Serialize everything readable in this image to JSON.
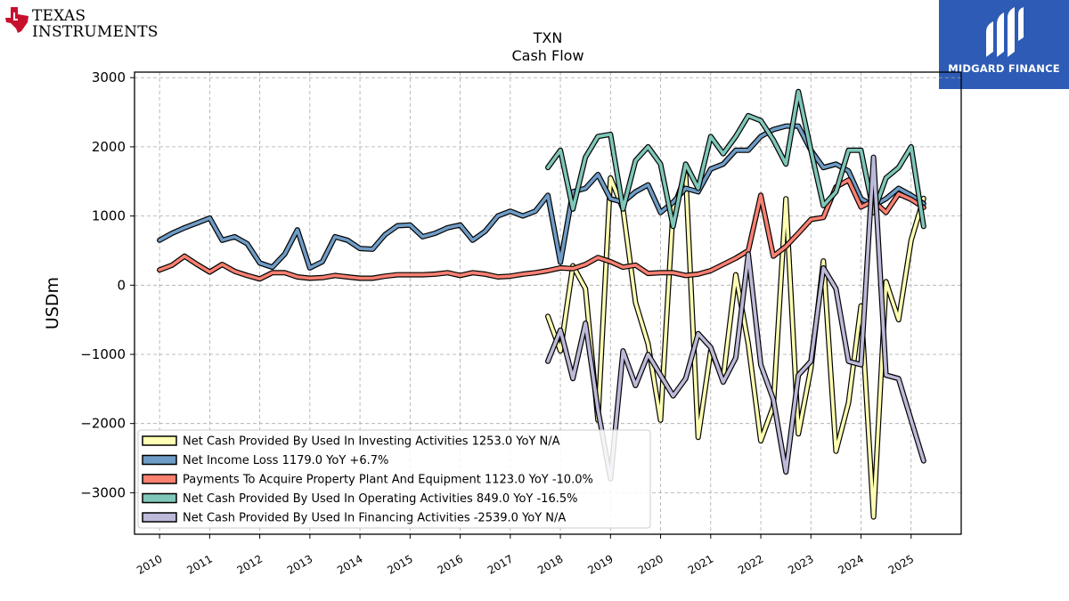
{
  "logos": {
    "left_brand": {
      "line1": "TEXAS",
      "line2": "INSTRUMENTS",
      "icon": "texas-state-icon",
      "color": "#c8102e"
    },
    "right_brand": {
      "label": "MIDGARD FINANCE",
      "icon": "midgard-emblem-icon",
      "bg_color": "#2d5bb5"
    }
  },
  "chart_data": {
    "type": "line",
    "title": "TXN",
    "subtitle": "Cash Flow",
    "ylabel": "USDm",
    "xlabel": "",
    "xlim": [
      2009.5,
      2026.0
    ],
    "ylim": [
      -3600,
      3080
    ],
    "xticks": [
      2010,
      2011,
      2012,
      2013,
      2014,
      2015,
      2016,
      2017,
      2018,
      2019,
      2020,
      2021,
      2022,
      2023,
      2024,
      2025
    ],
    "xtick_labels": [
      "2010",
      "2011",
      "2012",
      "2013",
      "2014",
      "2015",
      "2016",
      "2017",
      "2018",
      "2019",
      "2020",
      "2021",
      "2022",
      "2023",
      "2024",
      "2025"
    ],
    "yticks": [
      -3000,
      -2000,
      -1000,
      0,
      1000,
      2000,
      3000
    ],
    "ytick_labels": [
      "−3000",
      "−2000",
      "−1000",
      "0",
      "1000",
      "2000",
      "3000"
    ],
    "grid": true,
    "legend_position": "lower-left",
    "series": [
      {
        "name": "Net Cash Provided By Used In Investing Activities  1253.0 YoY N/A",
        "color": "#ffffb3",
        "x": [
          2017.75,
          2018.0,
          2018.25,
          2018.5,
          2018.75,
          2019.0,
          2019.25,
          2019.5,
          2019.75,
          2020.0,
          2020.25,
          2020.5,
          2020.75,
          2021.0,
          2021.25,
          2021.5,
          2021.75,
          2022.0,
          2022.25,
          2022.5,
          2022.75,
          2023.0,
          2023.25,
          2023.5,
          2023.75,
          2024.0,
          2024.25,
          2024.5,
          2024.75,
          2025.0,
          2025.25
        ],
        "y": [
          -450,
          -950,
          280,
          -50,
          -1950,
          1550,
          1100,
          -250,
          -850,
          -1950,
          1100,
          1600,
          -2200,
          -950,
          -1350,
          150,
          -850,
          -2250,
          -1750,
          1250,
          -2150,
          -1200,
          350,
          -2400,
          -1700,
          -300,
          -3350,
          50,
          -500,
          650,
          1253
        ]
      },
      {
        "name": "Net Income Loss  1179.0 YoY +6.7%",
        "color": "#6f9cc6",
        "x": [
          2010.0,
          2010.25,
          2010.5,
          2010.75,
          2011.0,
          2011.25,
          2011.5,
          2011.75,
          2012.0,
          2012.25,
          2012.5,
          2012.75,
          2013.0,
          2013.25,
          2013.5,
          2013.75,
          2014.0,
          2014.25,
          2014.5,
          2014.75,
          2015.0,
          2015.25,
          2015.5,
          2015.75,
          2016.0,
          2016.25,
          2016.5,
          2016.75,
          2017.0,
          2017.25,
          2017.5,
          2017.75,
          2018.0,
          2018.25,
          2018.5,
          2018.75,
          2019.0,
          2019.25,
          2019.5,
          2019.75,
          2020.0,
          2020.25,
          2020.5,
          2020.75,
          2021.0,
          2021.25,
          2021.5,
          2021.75,
          2022.0,
          2022.25,
          2022.5,
          2022.75,
          2023.0,
          2023.25,
          2023.5,
          2023.75,
          2024.0,
          2024.25,
          2024.5,
          2024.75,
          2025.0,
          2025.25
        ],
        "y": [
          650,
          750,
          830,
          900,
          970,
          650,
          700,
          600,
          320,
          260,
          450,
          800,
          250,
          340,
          700,
          650,
          530,
          520,
          730,
          860,
          870,
          700,
          750,
          830,
          870,
          650,
          780,
          1000,
          1070,
          1000,
          1070,
          1300,
          330,
          1350,
          1400,
          1600,
          1250,
          1200,
          1350,
          1450,
          1050,
          1200,
          1400,
          1350,
          1680,
          1750,
          1950,
          1950,
          2150,
          2250,
          2300,
          2300,
          1950,
          1700,
          1750,
          1650,
          1250,
          1150,
          1250,
          1400,
          1300,
          1179
        ]
      },
      {
        "name": "Payments To Acquire Property Plant And Equipment  1123.0 YoY -10.0%",
        "color": "#fa8072",
        "x": [
          2010.0,
          2010.25,
          2010.5,
          2010.75,
          2011.0,
          2011.25,
          2011.5,
          2011.75,
          2012.0,
          2012.25,
          2012.5,
          2012.75,
          2013.0,
          2013.25,
          2013.5,
          2013.75,
          2014.0,
          2014.25,
          2014.5,
          2014.75,
          2015.0,
          2015.25,
          2015.5,
          2015.75,
          2016.0,
          2016.25,
          2016.5,
          2016.75,
          2017.0,
          2017.25,
          2017.5,
          2017.75,
          2018.0,
          2018.25,
          2018.5,
          2018.75,
          2019.0,
          2019.25,
          2019.5,
          2019.75,
          2020.0,
          2020.25,
          2020.5,
          2020.75,
          2021.0,
          2021.25,
          2021.5,
          2021.75,
          2022.0,
          2022.25,
          2022.5,
          2022.75,
          2023.0,
          2023.25,
          2023.5,
          2023.75,
          2024.0,
          2024.25,
          2024.5,
          2024.75,
          2025.0,
          2025.25
        ],
        "y": [
          220,
          290,
          420,
          300,
          190,
          300,
          200,
          140,
          90,
          180,
          180,
          120,
          100,
          110,
          140,
          120,
          100,
          100,
          130,
          150,
          150,
          150,
          160,
          180,
          140,
          180,
          160,
          120,
          130,
          160,
          180,
          210,
          250,
          240,
          300,
          400,
          340,
          260,
          290,
          170,
          180,
          180,
          140,
          160,
          210,
          300,
          390,
          500,
          1300,
          420,
          560,
          750,
          950,
          980,
          1420,
          1520,
          1130,
          1220,
          1050,
          1320,
          1240,
          1123
        ]
      },
      {
        "name": "Net Cash Provided By Used In Operating Activities  849.0 YoY -16.5%",
        "color": "#7fc7b8",
        "x": [
          2017.75,
          2018.0,
          2018.25,
          2018.5,
          2018.75,
          2019.0,
          2019.25,
          2019.5,
          2019.75,
          2020.0,
          2020.25,
          2020.5,
          2020.75,
          2021.0,
          2021.25,
          2021.5,
          2021.75,
          2022.0,
          2022.25,
          2022.5,
          2022.75,
          2023.0,
          2023.25,
          2023.5,
          2023.75,
          2024.0,
          2024.25,
          2024.5,
          2024.75,
          2025.0,
          2025.25
        ],
        "y": [
          1700,
          1950,
          1100,
          1850,
          2150,
          2180,
          1100,
          1800,
          2000,
          1750,
          850,
          1750,
          1400,
          2150,
          1900,
          2150,
          2450,
          2380,
          2100,
          1750,
          2800,
          1950,
          1150,
          1350,
          1950,
          1950,
          1050,
          1550,
          1700,
          2000,
          849
        ]
      },
      {
        "name": "Net Cash Provided By Used In Financing Activities  -2539.0 YoY N/A",
        "color": "#bcbad8",
        "x": [
          2017.75,
          2018.0,
          2018.25,
          2018.5,
          2018.75,
          2019.0,
          2019.25,
          2019.5,
          2019.75,
          2020.0,
          2020.25,
          2020.5,
          2020.75,
          2021.0,
          2021.25,
          2021.5,
          2021.75,
          2022.0,
          2022.25,
          2022.5,
          2022.75,
          2023.0,
          2023.25,
          2023.5,
          2023.75,
          2024.0,
          2024.25,
          2024.5,
          2024.75,
          2025.0,
          2025.25
        ],
        "y": [
          -1100,
          -650,
          -1350,
          -550,
          -1800,
          -2800,
          -950,
          -1450,
          -1000,
          -1300,
          -1600,
          -1350,
          -700,
          -900,
          -1400,
          -1050,
          450,
          -1150,
          -1650,
          -2700,
          -1300,
          -1100,
          250,
          -50,
          -1100,
          -1150,
          1850,
          -1300,
          -1350,
          -1950,
          -2539
        ]
      }
    ]
  }
}
